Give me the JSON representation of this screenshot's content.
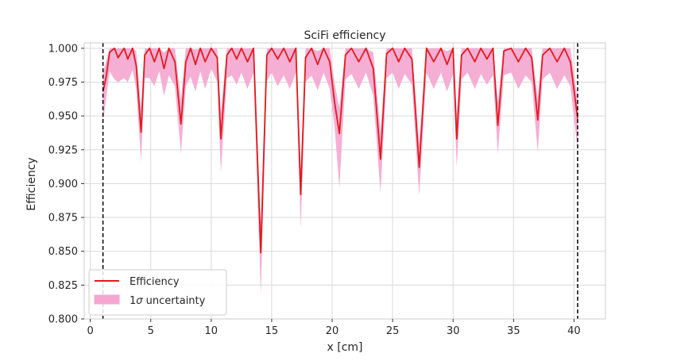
{
  "chart_data": {
    "type": "line",
    "title": "SciFi efficiency",
    "xlabel": "x [cm]",
    "ylabel": "Efficiency",
    "xlim": [
      -0.5,
      42.6
    ],
    "ylim": [
      0.8,
      1.004
    ],
    "xticks": [
      0,
      5,
      10,
      15,
      20,
      25,
      30,
      35,
      40
    ],
    "yticks": [
      0.8,
      0.825,
      0.85,
      0.875,
      0.9,
      0.925,
      0.95,
      0.975,
      1.0
    ],
    "xtick_labels": [
      "0",
      "5",
      "10",
      "15",
      "20",
      "25",
      "30",
      "35",
      "40"
    ],
    "ytick_labels": [
      "0.800",
      "0.825",
      "0.850",
      "0.875",
      "0.900",
      "0.925",
      "0.950",
      "0.975",
      "1.000"
    ],
    "grid": true,
    "legend_position": "lower-left",
    "vlines": [
      1.05,
      40.3
    ],
    "colors": {
      "line": "#e31a1c",
      "band": "#f4a6d0",
      "vline": "#000000",
      "grid": "#d9d9d9"
    },
    "series": [
      {
        "name": "Efficiency",
        "kind": "line",
        "x": [
          1.05,
          1.3,
          1.6,
          2.0,
          2.3,
          2.8,
          3.1,
          3.5,
          3.8,
          4.2,
          4.5,
          4.9,
          5.3,
          5.7,
          6.1,
          6.5,
          7.0,
          7.5,
          7.9,
          8.3,
          8.7,
          9.1,
          9.5,
          10.0,
          10.5,
          10.8,
          11.3,
          11.7,
          12.1,
          12.5,
          13.0,
          13.5,
          14.1,
          14.6,
          15.0,
          15.5,
          16.0,
          16.5,
          17.0,
          17.4,
          17.8,
          18.3,
          18.8,
          19.3,
          19.8,
          20.2,
          20.6,
          21.1,
          21.6,
          22.2,
          22.8,
          23.4,
          24.0,
          24.5,
          25.0,
          25.5,
          26.0,
          26.6,
          27.2,
          27.8,
          28.4,
          29.0,
          29.5,
          30.0,
          30.3,
          30.7,
          31.2,
          31.8,
          32.3,
          32.8,
          33.3,
          33.7,
          34.2,
          34.8,
          35.4,
          36.0,
          36.5,
          37.0,
          37.4,
          38.0,
          38.6,
          39.2,
          39.7,
          40.3
        ],
        "y": [
          0.968,
          0.978,
          0.997,
          1.0,
          0.993,
          1.0,
          0.992,
          1.0,
          0.987,
          0.938,
          0.995,
          1.0,
          0.99,
          1.0,
          0.985,
          1.0,
          0.99,
          0.944,
          0.99,
          1.0,
          0.988,
          1.0,
          0.99,
          1.0,
          0.993,
          0.933,
          0.995,
          1.0,
          0.992,
          1.0,
          0.99,
          1.0,
          0.849,
          0.995,
          1.0,
          0.992,
          1.0,
          0.99,
          1.0,
          0.892,
          0.993,
          1.0,
          0.988,
          1.0,
          0.99,
          0.96,
          0.937,
          0.995,
          1.0,
          0.99,
          1.0,
          0.985,
          0.918,
          0.996,
          1.0,
          0.99,
          1.0,
          0.992,
          0.912,
          1.0,
          0.99,
          1.0,
          0.988,
          1.0,
          0.933,
          0.995,
          1.0,
          0.99,
          1.0,
          0.992,
          1.0,
          0.943,
          0.998,
          1.0,
          0.99,
          1.0,
          0.993,
          0.947,
          0.995,
          1.0,
          0.99,
          1.0,
          0.99,
          0.948
        ]
      },
      {
        "name": "1σ uncertainty",
        "kind": "band",
        "x": [
          1.05,
          1.3,
          1.6,
          2.0,
          2.3,
          2.8,
          3.1,
          3.5,
          3.8,
          4.2,
          4.5,
          4.9,
          5.3,
          5.7,
          6.1,
          6.5,
          7.0,
          7.5,
          7.9,
          8.3,
          8.7,
          9.1,
          9.5,
          10.0,
          10.5,
          10.8,
          11.3,
          11.7,
          12.1,
          12.5,
          13.0,
          13.5,
          14.1,
          14.6,
          15.0,
          15.5,
          16.0,
          16.5,
          17.0,
          17.4,
          17.8,
          18.3,
          18.8,
          19.3,
          19.8,
          20.2,
          20.6,
          21.1,
          21.6,
          22.2,
          22.8,
          23.4,
          24.0,
          24.5,
          25.0,
          25.5,
          26.0,
          26.6,
          27.2,
          27.8,
          28.4,
          29.0,
          29.5,
          30.0,
          30.3,
          30.7,
          31.2,
          31.8,
          32.3,
          32.8,
          33.3,
          33.7,
          34.2,
          34.8,
          35.4,
          36.0,
          36.5,
          37.0,
          37.4,
          38.0,
          38.6,
          39.2,
          39.7,
          40.3
        ],
        "lower": [
          0.945,
          0.962,
          0.983,
          0.977,
          0.975,
          0.978,
          0.975,
          0.984,
          0.97,
          0.916,
          0.978,
          0.978,
          0.972,
          0.983,
          0.965,
          0.98,
          0.972,
          0.922,
          0.972,
          0.979,
          0.968,
          0.983,
          0.97,
          0.985,
          0.975,
          0.908,
          0.978,
          0.98,
          0.973,
          0.982,
          0.97,
          0.982,
          0.818,
          0.976,
          0.982,
          0.972,
          0.98,
          0.97,
          0.982,
          0.867,
          0.975,
          0.98,
          0.969,
          0.982,
          0.97,
          0.942,
          0.897,
          0.977,
          0.981,
          0.97,
          0.982,
          0.965,
          0.893,
          0.978,
          0.982,
          0.97,
          0.981,
          0.973,
          0.891,
          0.982,
          0.97,
          0.982,
          0.968,
          0.981,
          0.912,
          0.977,
          0.982,
          0.97,
          0.981,
          0.973,
          0.98,
          0.922,
          0.98,
          0.982,
          0.97,
          0.98,
          0.975,
          0.923,
          0.977,
          0.982,
          0.97,
          0.98,
          0.972,
          0.925
        ],
        "upper": [
          0.982,
          0.99,
          1.0,
          1.0,
          1.0,
          1.0,
          1.0,
          1.0,
          0.998,
          0.956,
          1.0,
          1.0,
          1.0,
          1.0,
          0.997,
          1.0,
          1.0,
          0.962,
          1.0,
          1.0,
          0.999,
          1.0,
          1.0,
          1.0,
          1.0,
          0.952,
          1.0,
          1.0,
          1.0,
          1.0,
          1.0,
          1.0,
          0.872,
          1.0,
          1.0,
          1.0,
          1.0,
          1.0,
          1.0,
          0.912,
          1.0,
          1.0,
          0.998,
          1.0,
          1.0,
          0.974,
          0.956,
          1.0,
          1.0,
          1.0,
          1.0,
          0.997,
          0.938,
          1.0,
          1.0,
          1.0,
          1.0,
          1.0,
          0.93,
          1.0,
          1.0,
          1.0,
          0.998,
          1.0,
          0.952,
          1.0,
          1.0,
          1.0,
          1.0,
          1.0,
          1.0,
          0.96,
          1.0,
          1.0,
          1.0,
          1.0,
          1.0,
          0.963,
          1.0,
          1.0,
          1.0,
          1.0,
          1.0,
          0.962
        ]
      }
    ]
  },
  "legend": {
    "line_label": "Efficiency",
    "band_label_prefix": "1",
    "band_label_sigma": "σ",
    "band_label_suffix": " uncertainty"
  }
}
